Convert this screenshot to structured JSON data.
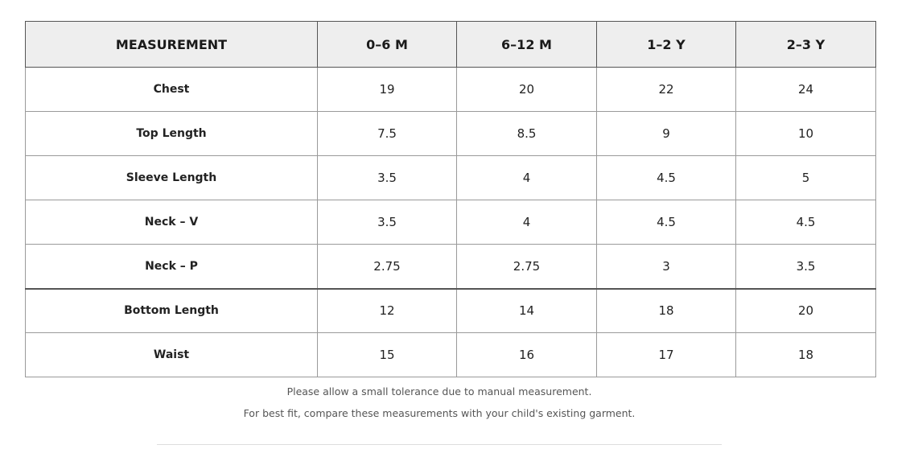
{
  "table": {
    "headers": [
      "MEASUREMENT",
      "0–6 M",
      "6–12 M",
      "1–2 Y",
      "2–3 Y"
    ],
    "rows": [
      {
        "label": "Chest",
        "values": [
          "19",
          "20",
          "22",
          "24"
        ]
      },
      {
        "label": "Top Length",
        "values": [
          "7.5",
          "8.5",
          "9",
          "10"
        ]
      },
      {
        "label": "Sleeve Length",
        "values": [
          "3.5",
          "4",
          "4.5",
          "5"
        ]
      },
      {
        "label": "Neck – V",
        "values": [
          "3.5",
          "4",
          "4.5",
          "4.5"
        ]
      },
      {
        "label": "Neck – P",
        "values": [
          "2.75",
          "2.75",
          "3",
          "3.5"
        ]
      },
      {
        "label": "Bottom Length",
        "values": [
          "12",
          "14",
          "18",
          "20"
        ]
      },
      {
        "label": "Waist",
        "values": [
          "15",
          "16",
          "17",
          "18"
        ]
      }
    ]
  },
  "notes": {
    "tolerance": "Please allow a small tolerance due to manual measurement.",
    "fit": "For best fit, compare these measurements with your child's existing garment."
  }
}
